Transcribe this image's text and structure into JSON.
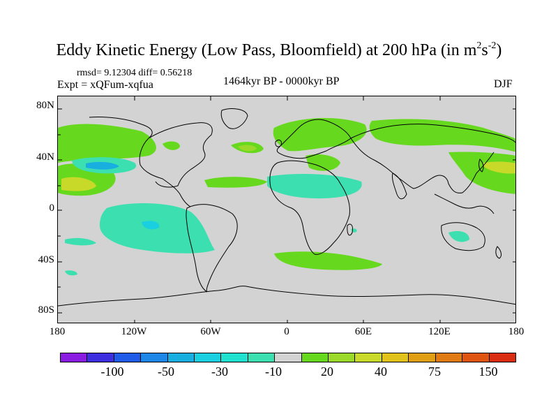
{
  "title": {
    "main": "Eddy Kinetic Energy (Low Pass, Bloomfield) at 200 hPa (in m",
    "sup1": "2",
    "mid": "s",
    "sup2": "-2",
    "end": ")"
  },
  "stats": "rmsd= 9.12304 diff= 0.56218",
  "expt": "Expt = xQFum-xqfua",
  "period": "1464kyr BP - 0000kyr BP",
  "season": "DJF",
  "lat_labels": [
    "80N",
    "40N",
    "0",
    "40S",
    "80S"
  ],
  "lon_labels": [
    "180",
    "120W",
    "60W",
    "0",
    "60E",
    "120E",
    "180"
  ],
  "colorbar": {
    "colors": [
      "#8a1be0",
      "#3d2ee0",
      "#1f5be6",
      "#1e86e6",
      "#19aee0",
      "#19cfe0",
      "#20e0d0",
      "#3ce0b0",
      "#d3d3d3",
      "#66d91e",
      "#9ad92a",
      "#c8d92a",
      "#e0c21a",
      "#e09e14",
      "#e07a12",
      "#e05412",
      "#d92c10"
    ],
    "labels": [
      "-100",
      "-50",
      "-30",
      "-10",
      "20",
      "40",
      "75",
      "150"
    ]
  }
}
